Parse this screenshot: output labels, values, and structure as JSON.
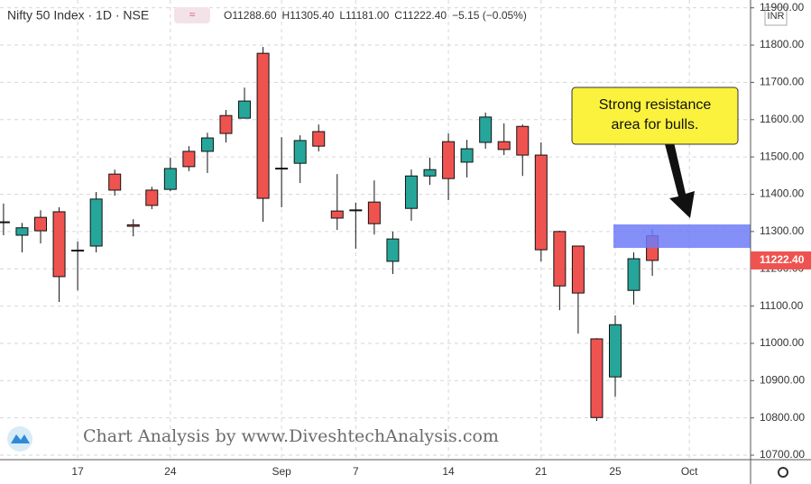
{
  "chart_data": {
    "type": "candlestick",
    "header": {
      "symbol": "Nifty 50 Index · 1D · NSE",
      "ohlc": [
        "O11288.60",
        "H11305.40",
        "L11181.00",
        "C11222.40",
        "−5.15 (−0.05%)"
      ]
    },
    "currency": "INR",
    "watermark": "Chart Analysis by www.DiveshtechAnalysis.com",
    "annotation": "Strong resistance area for bulls.",
    "zone": [
      11256,
      11319
    ],
    "open": [
      11326,
      11290,
      11338,
      11353,
      11250,
      11261,
      11454,
      11318,
      11411,
      11413,
      11515,
      11515,
      11611,
      11604,
      11778,
      11470,
      11483,
      11568,
      11355,
      11358,
      11379,
      11220,
      11362,
      11449,
      11541,
      11486,
      11539,
      11541,
      11582,
      11505,
      11300,
      11261,
      11012,
      10910,
      11142,
      11288.6
    ],
    "high": [
      11375,
      11323,
      11357,
      11365,
      11273,
      11406,
      11466,
      11333,
      11420,
      11498,
      11529,
      11565,
      11626,
      11686,
      11795,
      11553,
      11558,
      11587,
      11454,
      11377,
      11437,
      11300,
      11466,
      11498,
      11563,
      11546,
      11619,
      11590,
      11587,
      11539,
      11302,
      11261,
      11014,
      11075,
      11244,
      11305.4
    ],
    "low": [
      11290,
      11244,
      11268,
      11111,
      11142,
      11244,
      11396,
      11287,
      11360,
      11408,
      11462,
      11457,
      11539,
      11604,
      11326,
      11365,
      11430,
      11515,
      11304,
      11254,
      11292,
      11186,
      11329,
      11425,
      11384,
      11445,
      11522,
      11505,
      11449,
      11220,
      11089,
      11026,
      10792,
      10857,
      11104,
      11181
    ],
    "close": [
      11324,
      11310,
      11302,
      11179,
      11248,
      11387,
      11411,
      11314,
      11370,
      11469,
      11474,
      11551,
      11563,
      11650,
      11389,
      11468,
      11544,
      11529,
      11336,
      11356,
      11321,
      11280,
      11449,
      11466,
      11442,
      11522,
      11607,
      11520,
      11505,
      11251,
      11154,
      11135,
      10801,
      11050,
      11227,
      11222.4
    ],
    "last_price_label": "11222.40",
    "up_color": "#26a69a",
    "down_color": "#ef5350",
    "zone_color": "#6f7cf7",
    "xlim": [
      -0.19,
      40.3
    ],
    "xticks": [
      {
        "value": 4,
        "label": "17"
      },
      {
        "value": 9,
        "label": "24"
      },
      {
        "value": 15,
        "label": "Sep"
      },
      {
        "value": 19,
        "label": "7"
      },
      {
        "value": 24,
        "label": "14"
      },
      {
        "value": 29,
        "label": "21"
      },
      {
        "value": 33,
        "label": "25"
      },
      {
        "value": 37,
        "label": "Oct"
      }
    ],
    "ylim": [
      10688,
      11921
    ],
    "yticks": [
      {
        "value": 10700,
        "label": "10700.00"
      },
      {
        "value": 10800,
        "label": "10800.00"
      },
      {
        "value": 10900,
        "label": "10900.00"
      },
      {
        "value": 11000,
        "label": "11000.00"
      },
      {
        "value": 11100,
        "label": "11100.00"
      },
      {
        "value": 11200,
        "label": "11200.00"
      },
      {
        "value": 11300,
        "label": "11300.00"
      },
      {
        "value": 11400,
        "label": "11400.00"
      },
      {
        "value": 11500,
        "label": "11500.00"
      },
      {
        "value": 11600,
        "label": "11600.00"
      },
      {
        "value": 11700,
        "label": "11700.00"
      },
      {
        "value": 11800,
        "label": "11800.00"
      },
      {
        "value": 11900,
        "label": "11900.00"
      }
    ],
    "grid": true
  }
}
